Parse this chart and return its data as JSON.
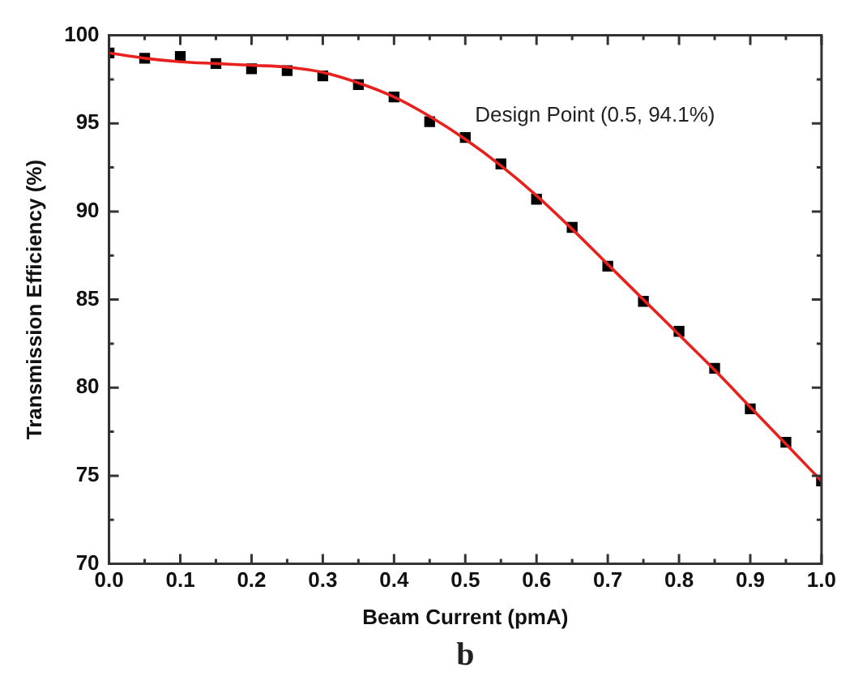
{
  "chart_data": {
    "type": "scatter",
    "xlabel": "Beam Current (pmA)",
    "ylabel": "Transmission Efficiency (%)",
    "x": [
      0,
      0.05,
      0.1,
      0.15,
      0.2,
      0.25,
      0.3,
      0.35,
      0.4,
      0.45,
      0.5,
      0.55,
      0.6,
      0.65,
      0.7,
      0.75,
      0.8,
      0.85,
      0.9,
      0.95,
      1.0
    ],
    "series": [
      {
        "type": "scatter",
        "color": "#000000",
        "marker": "square",
        "values": [
          99.0,
          98.7,
          98.8,
          98.4,
          98.1,
          98.0,
          97.7,
          97.2,
          96.5,
          95.1,
          94.2,
          92.7,
          90.7,
          89.1,
          86.9,
          84.9,
          83.2,
          81.1,
          78.8,
          76.9,
          74.7
        ]
      },
      {
        "type": "line",
        "color": "#e8201e",
        "marker": "none",
        "line_style": "solid",
        "values": [
          99.0,
          98.7,
          98.5,
          98.4,
          98.3,
          98.2,
          97.9,
          97.3,
          96.5,
          95.4,
          94.1,
          92.6,
          90.9,
          89.0,
          87.0,
          85.0,
          83.0,
          81.0,
          78.9,
          76.8,
          74.7
        ]
      }
    ],
    "xlim": [
      0,
      1.0
    ],
    "xticks": [
      {
        "value": 0,
        "label": "0.0"
      },
      {
        "value": 0.05,
        "label": null
      },
      {
        "value": 0.1,
        "label": "0.1"
      },
      {
        "value": 0.15,
        "label": null
      },
      {
        "value": 0.2,
        "label": "0.2"
      },
      {
        "value": 0.25,
        "label": null
      },
      {
        "value": 0.3,
        "label": "0.3"
      },
      {
        "value": 0.35,
        "label": null
      },
      {
        "value": 0.4,
        "label": "0.4"
      },
      {
        "value": 0.45,
        "label": null
      },
      {
        "value": 0.5,
        "label": "0.5"
      },
      {
        "value": 0.55,
        "label": null
      },
      {
        "value": 0.6,
        "label": "0.6"
      },
      {
        "value": 0.65,
        "label": null
      },
      {
        "value": 0.7,
        "label": "0.7"
      },
      {
        "value": 0.75,
        "label": null
      },
      {
        "value": 0.8,
        "label": "0.8"
      },
      {
        "value": 0.85,
        "label": null
      },
      {
        "value": 0.9,
        "label": "0.9"
      },
      {
        "value": 0.95,
        "label": null
      },
      {
        "value": 1.0,
        "label": "1.0"
      }
    ],
    "ylim": [
      70,
      100
    ],
    "yticks": [
      70,
      {
        "value": 72.5,
        "label": null
      },
      75,
      {
        "value": 77.5,
        "label": null
      },
      80,
      {
        "value": 82.5,
        "label": null
      },
      85,
      {
        "value": 87.5,
        "label": null
      },
      90,
      {
        "value": 92.5,
        "label": null
      },
      95,
      {
        "value": 97.5,
        "label": null
      },
      100
    ],
    "grid": false,
    "legend": false,
    "annotations": [
      {
        "text": "Design Point (0.5, 94.1%)",
        "x": 0.5,
        "y": 94.1
      },
      "b"
    ]
  }
}
